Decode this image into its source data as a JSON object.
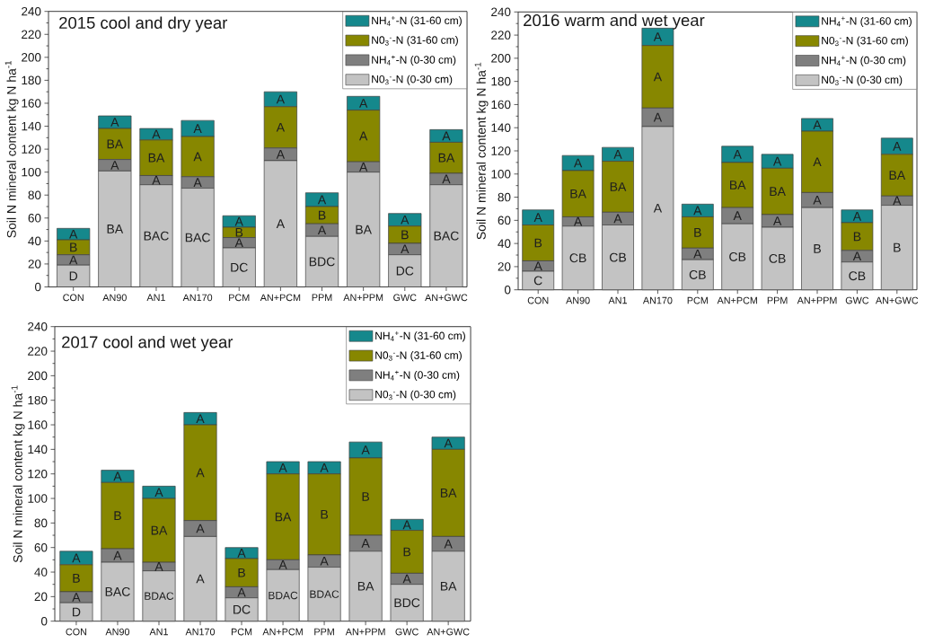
{
  "chart_data": [
    {
      "type": "bar",
      "stacked": true,
      "title": "2015 cool and dry year",
      "ylabel": "Soil N mineral content kg N ha$^{-1}$",
      "legend": "top right",
      "categories": [
        "CON",
        "AN90",
        "AN1",
        "AN170",
        "PCM",
        "AN+PCM",
        "PPM",
        "AN+PPM",
        "GWC",
        "AN+GWC"
      ],
      "ylim": [
        0,
        240
      ],
      "yticks": [
        0,
        {
          "value": 10,
          "label": null
        },
        20,
        {
          "value": 30,
          "label": null
        },
        40,
        {
          "value": 50,
          "label": null
        },
        60,
        {
          "value": 70,
          "label": null
        },
        80,
        {
          "value": 90,
          "label": null
        },
        100,
        {
          "value": 110,
          "label": null
        },
        120,
        {
          "value": 130,
          "label": null
        },
        140,
        {
          "value": 150,
          "label": null
        },
        160,
        {
          "value": 170,
          "label": null
        },
        180,
        {
          "value": 190,
          "label": null
        },
        200,
        {
          "value": 210,
          "label": null
        },
        220,
        {
          "value": 230,
          "label": null
        },
        240
      ],
      "series": [
        {
          "name": "N0$_{3}$$^{-}$-N (0-30 cm)",
          "color": "#c3c3c3",
          "values": [
            19,
            101,
            89,
            86,
            34,
            110,
            44,
            100,
            28,
            89
          ],
          "value_labels": [
            "D",
            "BA",
            "BAC",
            "BAC",
            "DC",
            "A",
            "BDC",
            "BA",
            "DC",
            "BAC"
          ]
        },
        {
          "name": "NH$_{4}$$^{+}$-N (0-30 cm)",
          "color": "#7f7f7f",
          "values": [
            9,
            10,
            8,
            10,
            9,
            11,
            11,
            9,
            10,
            10
          ],
          "value_labels": [
            "A",
            "A",
            "A",
            "A",
            "A",
            "A",
            "A",
            "A",
            "A",
            "A"
          ]
        },
        {
          "name": "N0$_{3}$$^{-}$-N (31-60 cm)",
          "color": "#878700",
          "values": [
            13,
            27,
            31,
            35,
            9,
            36,
            15,
            45,
            15,
            27
          ],
          "value_labels": [
            "B",
            "BA",
            "BA",
            "A",
            "B",
            "A",
            "B",
            "A",
            "B",
            "BA"
          ]
        },
        {
          "name": "NH$_{4}$$^{+}$-N (31-60 cm)",
          "color": "#15888c",
          "values": [
            10,
            11,
            10,
            14,
            10,
            13,
            12,
            12,
            11,
            11
          ],
          "value_labels": [
            "A",
            "A",
            "A",
            "A",
            "A",
            "A",
            "A",
            "A",
            "A",
            "A"
          ]
        }
      ]
    },
    {
      "type": "bar",
      "stacked": true,
      "title": "2016 warm and wet year",
      "ylabel": "Soil N mineral content kg N ha$^{-1}$",
      "legend": "top right",
      "categories": [
        "CON",
        "AN90",
        "AN1",
        "AN170",
        "PCM",
        "AN+PCM",
        "PPM",
        "AN+PPM",
        "GWC",
        "AN+GWC"
      ],
      "ylim": [
        0,
        240
      ],
      "yticks": [
        0,
        {
          "value": 10,
          "label": null
        },
        20,
        {
          "value": 30,
          "label": null
        },
        40,
        {
          "value": 50,
          "label": null
        },
        60,
        {
          "value": 70,
          "label": null
        },
        80,
        {
          "value": 90,
          "label": null
        },
        100,
        {
          "value": 110,
          "label": null
        },
        120,
        {
          "value": 130,
          "label": null
        },
        140,
        {
          "value": 150,
          "label": null
        },
        160,
        {
          "value": 170,
          "label": null
        },
        180,
        {
          "value": 190,
          "label": null
        },
        200,
        {
          "value": 210,
          "label": null
        },
        220,
        {
          "value": 230,
          "label": null
        },
        240
      ],
      "series": [
        {
          "name": "N0$_{3}$$^{-}$-N (0-30 cm)",
          "color": "#c3c3c3",
          "values": [
            16,
            55,
            56,
            141,
            26,
            57,
            54,
            71,
            24,
            73
          ],
          "value_labels": [
            "C",
            "CB",
            "CB",
            "A",
            "CB",
            "CB",
            "CB",
            "B",
            "CB",
            "B"
          ]
        },
        {
          "name": "NH$_{4}$$^{+}$-N (0-30 cm)",
          "color": "#7f7f7f",
          "values": [
            9,
            8,
            11,
            16,
            10,
            14,
            11,
            13,
            10,
            8
          ],
          "value_labels": [
            "A",
            "A",
            "A",
            "A",
            "A",
            "A",
            "A",
            "A",
            "A",
            "A"
          ]
        },
        {
          "name": "N0$_{3}$$^{-}$-N (31-60 cm)",
          "color": "#878700",
          "values": [
            31,
            40,
            44,
            54,
            27,
            39,
            40,
            53,
            24,
            36
          ],
          "value_labels": [
            "B",
            "BA",
            "BA",
            "A",
            "B",
            "BA",
            "BA",
            "A",
            "B",
            "BA"
          ]
        },
        {
          "name": "NH$_{4}$$^{+}$-N (31-60 cm)",
          "color": "#15888c",
          "values": [
            13,
            13,
            12,
            15,
            11,
            14,
            12,
            11,
            11,
            14
          ],
          "value_labels": [
            "A",
            "A",
            "A",
            "A",
            "A",
            "A",
            "A",
            "A",
            "A",
            "A"
          ]
        }
      ]
    },
    {
      "type": "bar",
      "stacked": true,
      "title": "2017 cool and wet year",
      "ylabel": "Soil N mineral content kg N ha$^{-1}$",
      "legend": "top right",
      "categories": [
        "CON",
        "AN90",
        "AN1",
        "AN170",
        "PCM",
        "AN+PCM",
        "PPM",
        "AN+PPM",
        "GWC",
        "AN+GWC"
      ],
      "ylim": [
        0,
        240
      ],
      "yticks": [
        0,
        {
          "value": 10,
          "label": null
        },
        20,
        {
          "value": 30,
          "label": null
        },
        40,
        {
          "value": 50,
          "label": null
        },
        60,
        {
          "value": 70,
          "label": null
        },
        80,
        {
          "value": 90,
          "label": null
        },
        100,
        {
          "value": 110,
          "label": null
        },
        120,
        {
          "value": 130,
          "label": null
        },
        140,
        {
          "value": 150,
          "label": null
        },
        160,
        {
          "value": 170,
          "label": null
        },
        180,
        {
          "value": 190,
          "label": null
        },
        200,
        {
          "value": 210,
          "label": null
        },
        220,
        {
          "value": 230,
          "label": null
        },
        240
      ],
      "series": [
        {
          "name": "N0$_{3}$$^{-}$-N (0-30 cm)",
          "color": "#c3c3c3",
          "values": [
            15,
            48,
            41,
            69,
            19,
            42,
            44,
            57,
            30,
            57
          ],
          "value_labels": [
            "D",
            "BAC",
            "BDAC",
            "A",
            "DC",
            "BDAC",
            "BDAC",
            "BA",
            "BDC",
            "BA"
          ]
        },
        {
          "name": "NH$_{4}$$^{+}$-N (0-30 cm)",
          "color": "#7f7f7f",
          "values": [
            9,
            11,
            7,
            13,
            9,
            8,
            10,
            13,
            9,
            12
          ],
          "value_labels": [
            "A",
            "A",
            "A",
            "A",
            "A",
            "A",
            "A",
            "A",
            "A",
            "A"
          ]
        },
        {
          "name": "N0$_{3}$$^{-}$-N (31-60 cm)",
          "color": "#878700",
          "values": [
            22,
            54,
            52,
            78,
            23,
            70,
            66,
            63,
            35,
            71
          ],
          "value_labels": [
            "B",
            "B",
            "BA",
            "A",
            "B",
            "BA",
            "B",
            "B",
            "B",
            "BA"
          ]
        },
        {
          "name": "NH$_{4}$$^{+}$-N (31-60 cm)",
          "color": "#15888c",
          "values": [
            11,
            10,
            10,
            10,
            9,
            10,
            10,
            13,
            9,
            10
          ],
          "value_labels": [
            "A",
            "A",
            "A",
            "A",
            "A",
            "A",
            "A",
            "A",
            "A",
            "A"
          ]
        }
      ]
    }
  ]
}
